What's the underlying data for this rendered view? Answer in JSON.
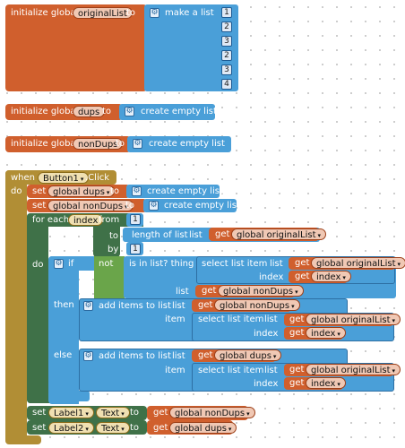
{
  "init1": {
    "label": "initialize global",
    "var": "originalList",
    "to": "to",
    "make": "make a list",
    "items": [
      "1",
      "2",
      "3",
      "2",
      "3",
      "4"
    ]
  },
  "init2": {
    "label": "initialize global",
    "var": "dups",
    "to": "to",
    "create": "create empty list"
  },
  "init3": {
    "label": "initialize global",
    "var": "nonDups",
    "to": "to",
    "create": "create empty list"
  },
  "event": {
    "when": "when",
    "component": "Button1",
    "click": ".Click",
    "do": "do"
  },
  "set_dups": {
    "set": "set",
    "var": "global dups",
    "to": "to",
    "create": "create empty list"
  },
  "set_nondups": {
    "set": "set",
    "var": "global nonDups",
    "to": "to",
    "create": "create empty list"
  },
  "foreach": {
    "label": "for each",
    "var": "index",
    "from": "from",
    "from_val": "1",
    "to": "to",
    "length": "length of list",
    "list": "list",
    "get": "get",
    "get_var": "global originalList",
    "by": "by",
    "by_val": "1",
    "do": "do"
  },
  "ifblock": {
    "if": "if",
    "not": "not",
    "isin": "is in list? thing",
    "select": "select list item",
    "list": "list",
    "get": "get",
    "var_orig": "global originalList",
    "index": "index",
    "var_index": "index",
    "list2": "list",
    "var_nondups": "global nonDups",
    "then": "then",
    "else": "else"
  },
  "then_add": {
    "add": "add items to list",
    "list": "list",
    "get": "get",
    "var": "global nonDups",
    "item": "item",
    "select": "select list item",
    "list2": "list",
    "var_orig": "global originalList",
    "index": "index",
    "var_index": "index"
  },
  "else_add": {
    "add": "add items to list",
    "list": "list",
    "get": "get",
    "var": "global dups",
    "item": "item",
    "select": "select list item",
    "list2": "list",
    "var_orig": "global originalList",
    "index": "index",
    "var_index": "index"
  },
  "set_label1": {
    "set": "set",
    "comp": "Label1",
    "prop": "Text",
    "to": "to",
    "get": "get",
    "var": "global nonDups"
  },
  "set_label2": {
    "set": "set",
    "comp": "Label2",
    "prop": "Text",
    "to": "to",
    "get": "get",
    "var": "global dups"
  },
  "dropdown_arrow": "▾",
  "gear_glyph": "⚙"
}
